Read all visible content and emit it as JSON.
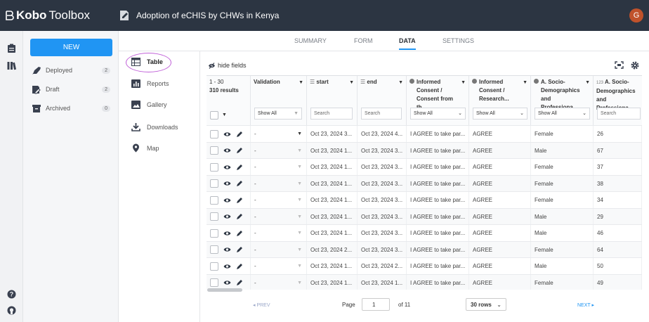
{
  "app": {
    "logo_a": "Kobo",
    "logo_b": "Toolbox",
    "project_title": "Adoption of eCHIS by CHWs in Kenya",
    "avatar": "G",
    "avatar_color": "#c0522b"
  },
  "sidebar": {
    "new_label": "NEW",
    "items": [
      {
        "label": "Deployed",
        "count": "2",
        "icon": "rocket-icon"
      },
      {
        "label": "Draft",
        "count": "2",
        "icon": "draft-icon"
      },
      {
        "label": "Archived",
        "count": "0",
        "icon": "archive-icon"
      }
    ]
  },
  "tabs": [
    "SUMMARY",
    "FORM",
    "DATA",
    "SETTINGS"
  ],
  "active_tab": "DATA",
  "subnav": [
    "Table",
    "Reports",
    "Gallery",
    "Downloads",
    "Map"
  ],
  "active_subnav": "Table",
  "toolbar": {
    "hide_fields": "hide fields"
  },
  "table": {
    "range": "1 - 30",
    "results": "310 results",
    "headers": {
      "validation": "Validation",
      "start": "start",
      "end": "end",
      "consent": "Informed Consent / Consent from th...",
      "informed": "Informed Consent / Research...",
      "socio1": "A. Socio-Demographics and Professiona...",
      "socio2": "A. Socio-Demographics and Professiona...",
      "socio2_prefix": "123"
    },
    "filters": {
      "validation": "Show All",
      "start": "Search",
      "end": "Search",
      "consent": "Show All",
      "informed": "Show All",
      "socio1": "Show All",
      "socio2": "Search"
    },
    "rows": [
      {
        "validation": "-",
        "start": "Oct 23, 2024 3...",
        "end": "Oct 23, 2024 4...",
        "consent": "I AGREE to take par...",
        "informed": "AGREE",
        "gender": "Female",
        "age": "26"
      },
      {
        "validation": "-",
        "start": "Oct 23, 2024 1...",
        "end": "Oct 23, 2024 3...",
        "consent": "I AGREE to take par...",
        "informed": "AGREE",
        "gender": "Male",
        "age": "67"
      },
      {
        "validation": "-",
        "start": "Oct 23, 2024 1...",
        "end": "Oct 23, 2024 3...",
        "consent": "I AGREE to take par...",
        "informed": "AGREE",
        "gender": "Female",
        "age": "37"
      },
      {
        "validation": "-",
        "start": "Oct 23, 2024 1...",
        "end": "Oct 23, 2024 3...",
        "consent": "I AGREE to take par...",
        "informed": "AGREE",
        "gender": "Female",
        "age": "38"
      },
      {
        "validation": "-",
        "start": "Oct 23, 2024 1...",
        "end": "Oct 23, 2024 3...",
        "consent": "I AGREE to take par...",
        "informed": "AGREE",
        "gender": "Female",
        "age": "34"
      },
      {
        "validation": "-",
        "start": "Oct 23, 2024 1...",
        "end": "Oct 23, 2024 3...",
        "consent": "I AGREE to take par...",
        "informed": "AGREE",
        "gender": "Male",
        "age": "29"
      },
      {
        "validation": "-",
        "start": "Oct 23, 2024 1...",
        "end": "Oct 23, 2024 3...",
        "consent": "I AGREE to take par...",
        "informed": "AGREE",
        "gender": "Male",
        "age": "46"
      },
      {
        "validation": "-",
        "start": "Oct 23, 2024 2...",
        "end": "Oct 23, 2024 3...",
        "consent": "I AGREE to take par...",
        "informed": "AGREE",
        "gender": "Female",
        "age": "64"
      },
      {
        "validation": "-",
        "start": "Oct 23, 2024 1...",
        "end": "Oct 23, 2024 2...",
        "consent": "I AGREE to take par...",
        "informed": "AGREE",
        "gender": "Male",
        "age": "50"
      },
      {
        "validation": "-",
        "start": "Oct 23, 2024 1...",
        "end": "Oct 23, 2024 1...",
        "consent": "I AGREE to take par...",
        "informed": "AGREE",
        "gender": "Female",
        "age": "49"
      }
    ]
  },
  "pager": {
    "prev": "◂ PREV",
    "page_label": "Page",
    "page": "1",
    "of": "of 11",
    "rows": "30 rows",
    "next": "NEXT ▸"
  },
  "colors": {
    "accent": "#2095f3",
    "topbar": "#2c3542"
  }
}
